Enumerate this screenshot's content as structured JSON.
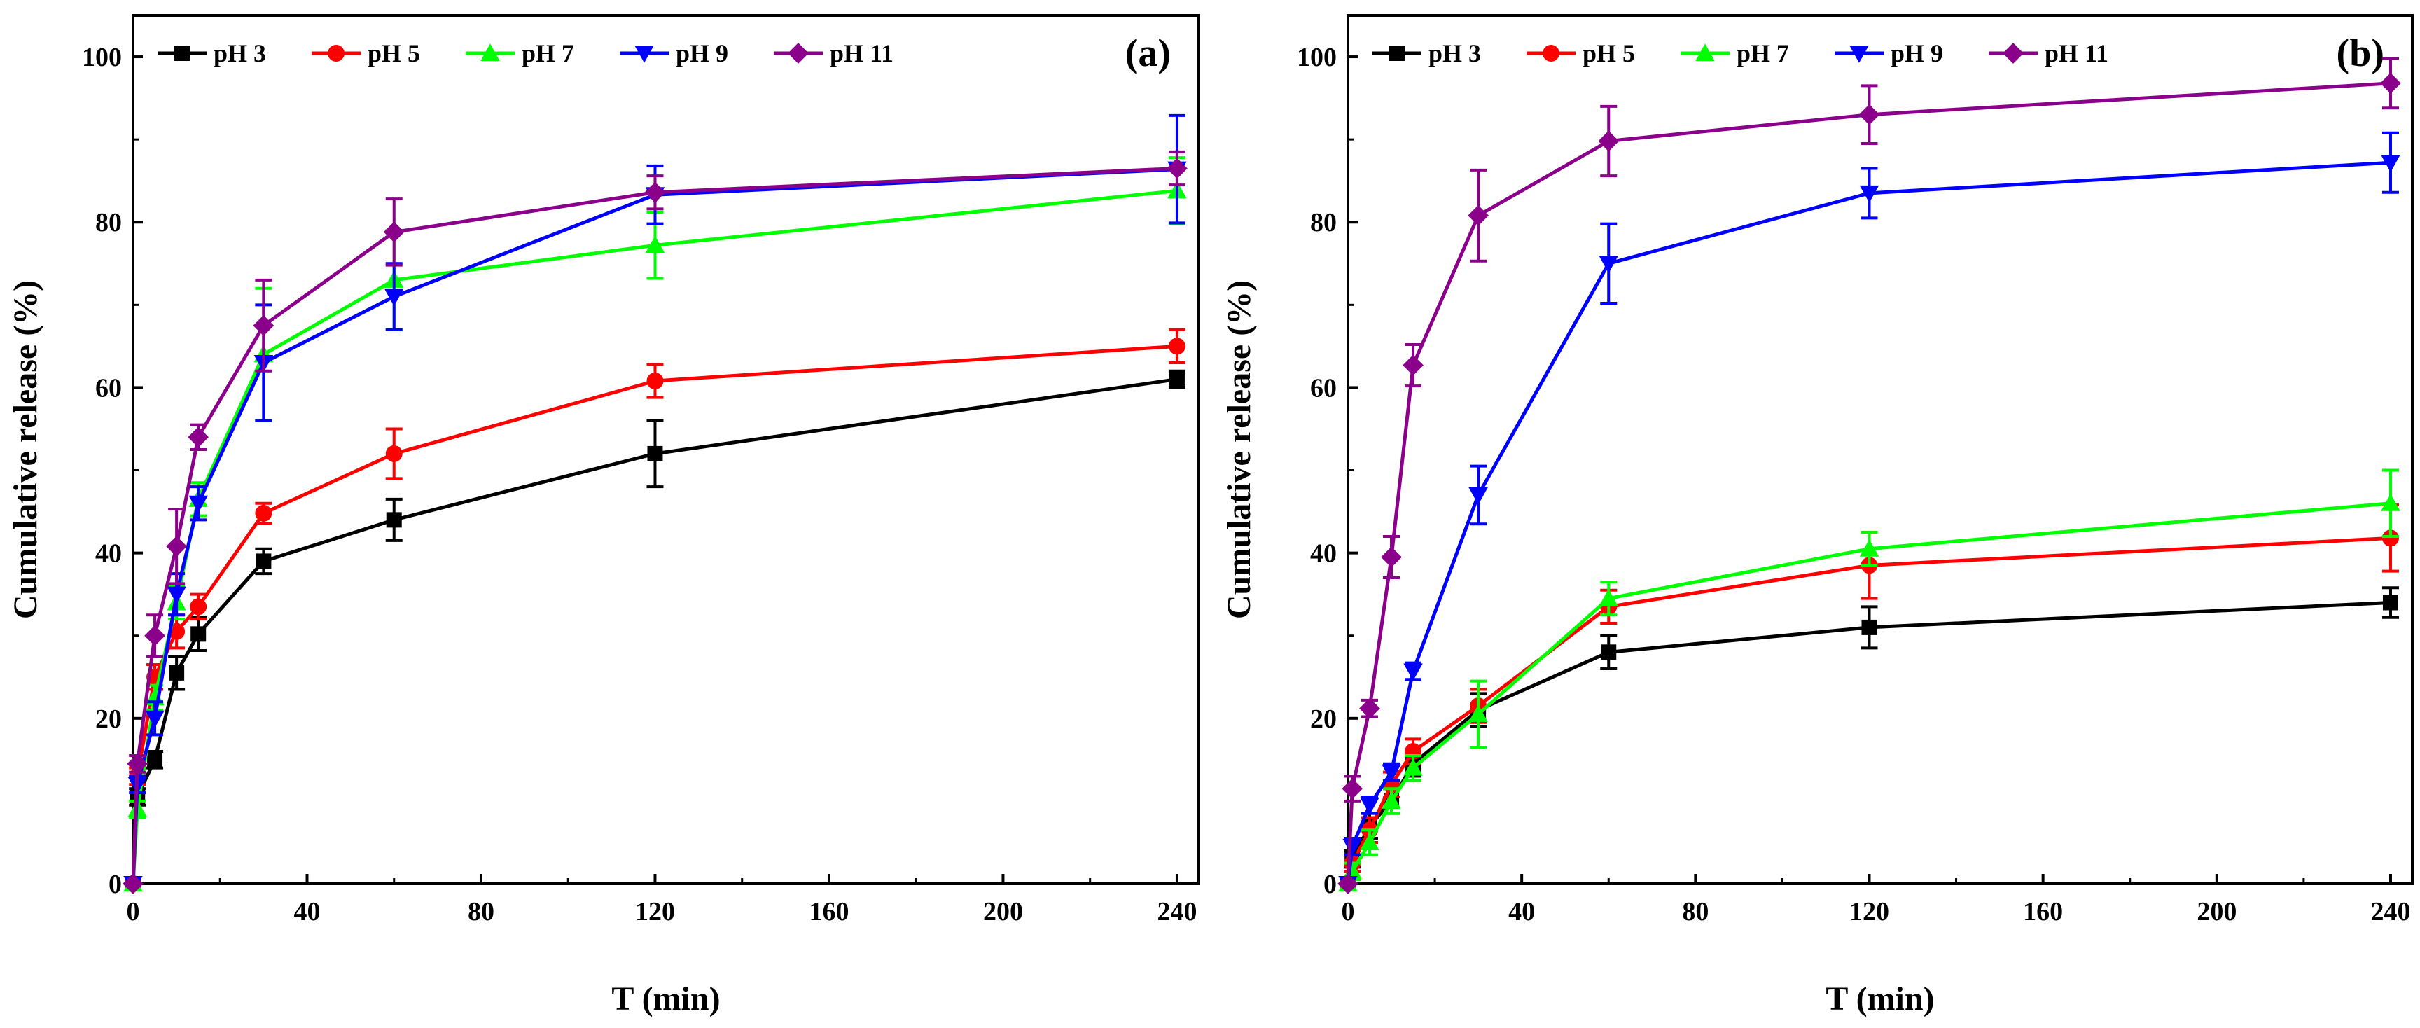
{
  "chart_data": [
    {
      "type": "line",
      "panel_label": "(a)",
      "title": "",
      "xlabel": "T (min)",
      "ylabel": "Cumulative release (%)",
      "xlim": [
        0,
        245
      ],
      "ylim": [
        0,
        105
      ],
      "xticks": [
        0,
        40,
        80,
        120,
        160,
        200,
        240
      ],
      "yticks": [
        0,
        20,
        40,
        60,
        80,
        100
      ],
      "legend_position": "top-left",
      "series": [
        {
          "name": "pH 3",
          "color": "#000000",
          "marker": "square",
          "x": [
            0,
            1,
            5,
            10,
            15,
            30,
            60,
            120,
            240
          ],
          "y": [
            0,
            10.5,
            15,
            25.5,
            30.2,
            39,
            44,
            52,
            61
          ],
          "err": [
            0,
            1,
            1,
            2,
            2,
            1.5,
            2.5,
            4,
            1
          ]
        },
        {
          "name": "pH 5",
          "color": "#ff0000",
          "marker": "circle",
          "x": [
            0,
            1,
            5,
            10,
            15,
            30,
            60,
            120,
            240
          ],
          "y": [
            0,
            13,
            25,
            30.5,
            33.5,
            44.8,
            52,
            60.8,
            65
          ],
          "err": [
            0,
            1,
            1.5,
            2,
            1.5,
            1.2,
            3,
            2,
            2
          ]
        },
        {
          "name": "pH 7",
          "color": "#00ff00",
          "marker": "triangle-up",
          "x": [
            0,
            1,
            5,
            10,
            15,
            30,
            60,
            120,
            240
          ],
          "y": [
            0,
            9,
            22.5,
            34,
            46.5,
            64,
            73,
            77.2,
            83.8
          ],
          "err": [
            0,
            1,
            1.5,
            2,
            2,
            8,
            6,
            4,
            4
          ]
        },
        {
          "name": "pH 9",
          "color": "#0000ff",
          "marker": "triangle-down",
          "x": [
            0,
            1,
            5,
            10,
            15,
            30,
            60,
            120,
            240
          ],
          "y": [
            0,
            12,
            20,
            35,
            46,
            63,
            71,
            83.3,
            86.4
          ],
          "err": [
            0,
            1,
            2,
            2.5,
            2,
            7,
            4,
            3.5,
            6.5
          ]
        },
        {
          "name": "pH 11",
          "color": "#8b008b",
          "marker": "diamond",
          "x": [
            0,
            1,
            5,
            10,
            15,
            30,
            60,
            120,
            240
          ],
          "y": [
            0,
            14.5,
            30,
            40.8,
            54,
            67.5,
            78.8,
            83.6,
            86.5
          ],
          "err": [
            0,
            1,
            2.5,
            4.5,
            1.5,
            5.5,
            4,
            2,
            2
          ]
        }
      ]
    },
    {
      "type": "line",
      "panel_label": "(b)",
      "title": "",
      "xlabel": "T (min)",
      "ylabel": "Cumulative release (%)",
      "xlim": [
        0,
        245
      ],
      "ylim": [
        0,
        105
      ],
      "xticks": [
        0,
        40,
        80,
        120,
        160,
        200,
        240
      ],
      "yticks": [
        0,
        20,
        40,
        60,
        80,
        100
      ],
      "legend_position": "top-left",
      "series": [
        {
          "name": "pH 3",
          "color": "#000000",
          "marker": "square",
          "x": [
            0,
            1,
            5,
            10,
            15,
            30,
            60,
            120,
            240
          ],
          "y": [
            0,
            3,
            7,
            10,
            14.5,
            21,
            28,
            31,
            34
          ],
          "err": [
            0,
            1,
            1.5,
            1.5,
            1.5,
            2,
            2,
            2.5,
            1.8
          ]
        },
        {
          "name": "pH 5",
          "color": "#ff0000",
          "marker": "circle",
          "x": [
            0,
            1,
            5,
            10,
            15,
            30,
            60,
            120,
            240
          ],
          "y": [
            0,
            2.5,
            6.5,
            12,
            16,
            21.5,
            33.5,
            38.5,
            41.8
          ],
          "err": [
            0,
            1,
            1.5,
            1.5,
            1.5,
            2,
            2,
            4,
            4
          ]
        },
        {
          "name": "pH 7",
          "color": "#00ff00",
          "marker": "triangle-up",
          "x": [
            0,
            1,
            5,
            10,
            15,
            30,
            60,
            120,
            240
          ],
          "y": [
            0,
            1.5,
            5,
            10,
            14,
            20.5,
            34.5,
            40.5,
            46
          ],
          "err": [
            0,
            1,
            1.5,
            1.5,
            1.5,
            4,
            2,
            2,
            4
          ]
        },
        {
          "name": "pH 9",
          "color": "#0000ff",
          "marker": "triangle-down",
          "x": [
            0,
            1,
            5,
            10,
            15,
            30,
            60,
            120,
            240
          ],
          "y": [
            0,
            4.5,
            9.5,
            13.5,
            25.7,
            47,
            75,
            83.5,
            87.2
          ],
          "err": [
            0,
            1,
            1,
            1,
            1,
            3.5,
            4.8,
            3,
            3.6
          ]
        },
        {
          "name": "pH 11",
          "color": "#8b008b",
          "marker": "diamond",
          "x": [
            0,
            1,
            5,
            10,
            15,
            30,
            60,
            120,
            240
          ],
          "y": [
            0,
            11.5,
            21.2,
            39.5,
            62.7,
            80.8,
            89.8,
            93,
            96.8
          ],
          "err": [
            0,
            1.5,
            1,
            2.5,
            2.5,
            5.5,
            4.2,
            3.5,
            3
          ]
        }
      ]
    }
  ]
}
